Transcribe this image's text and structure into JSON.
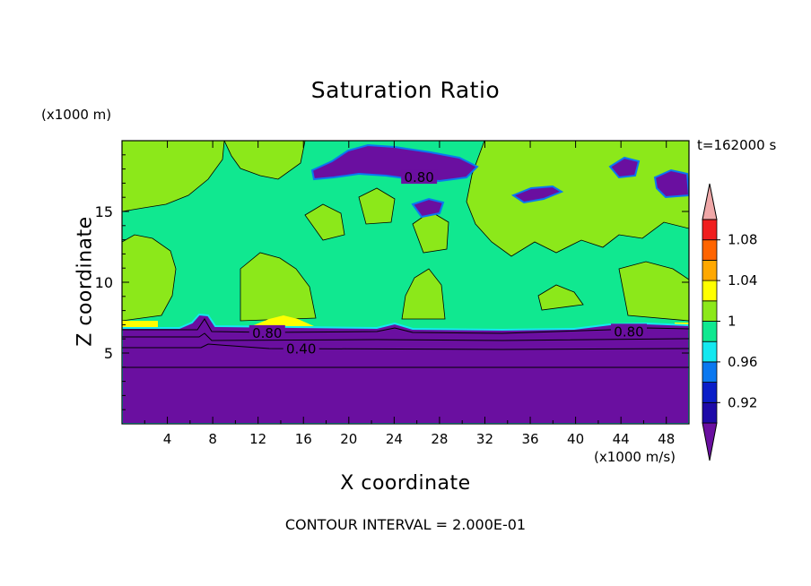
{
  "chart_data": {
    "type": "heatmap",
    "title": "Saturation Ratio",
    "xlabel": "X coordinate",
    "ylabel": "Z coordinate",
    "x_unit": "(x1000 m/s)",
    "y_unit": "(x1000 m)",
    "time_label": "t=162000 s",
    "footer": "CONTOUR INTERVAL = 2.000E-01",
    "xlim": [
      0,
      50
    ],
    "ylim": [
      0,
      20
    ],
    "x_ticks": [
      4,
      8,
      12,
      16,
      20,
      24,
      28,
      32,
      36,
      40,
      44,
      48
    ],
    "y_ticks": [
      5,
      10,
      15
    ],
    "colorbar": {
      "levels": [
        0.92,
        0.94,
        0.96,
        0.98,
        1.0,
        1.02,
        1.04,
        1.06,
        1.08,
        1.1
      ],
      "tick_labels": [
        "0.92",
        "0.96",
        "1",
        "1.04",
        "1.08"
      ],
      "colors": [
        "#6a0fa0",
        "#1d0aa8",
        "#0a1ec8",
        "#0a78f0",
        "#14e8f0",
        "#10e890",
        "#8ce81a",
        "#ffff00",
        "#ffa800",
        "#ff6400",
        "#f01e1e",
        "#f0a8a8"
      ]
    },
    "contour_labels": [
      {
        "text": "0.80",
        "x": 26.2,
        "y": 17.4
      },
      {
        "text": "0.80",
        "x": 12.8,
        "y": 6.4
      },
      {
        "text": "0.40",
        "x": 15.8,
        "y": 5.3
      },
      {
        "text": "0.80",
        "x": 44.7,
        "y": 6.5
      }
    ]
  }
}
